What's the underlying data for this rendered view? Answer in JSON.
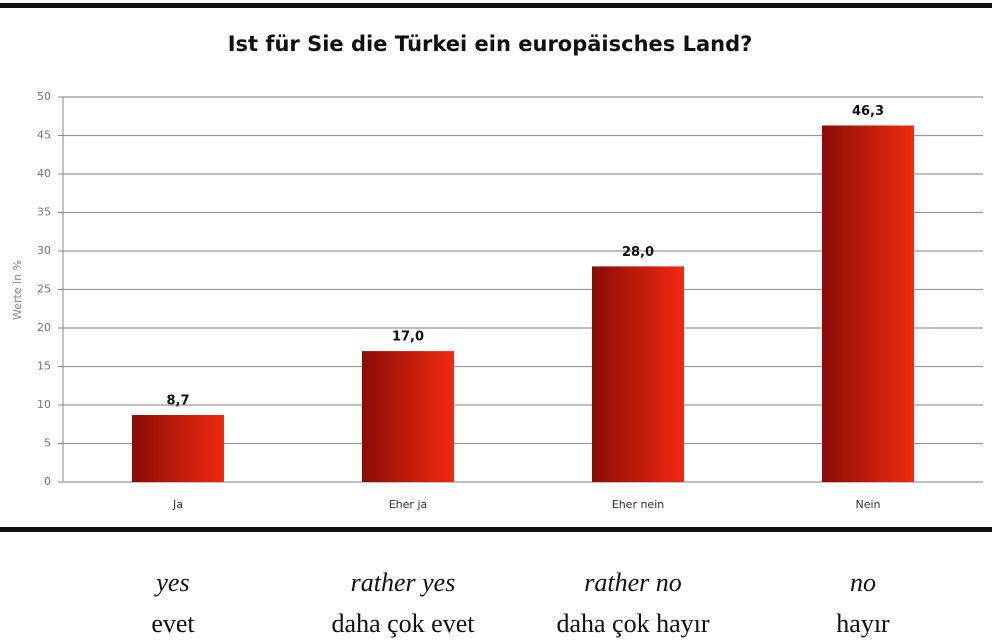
{
  "chart_data": {
    "type": "bar",
    "title": "Ist für Sie die Türkei ein europäisches Land?",
    "ylabel": "Werte in %",
    "categories": [
      "Ja",
      "Eher ja",
      "Eher nein",
      "Nein"
    ],
    "values": [
      8.7,
      17.0,
      28.0,
      46.3
    ],
    "value_labels": [
      "8,7",
      "17,0",
      "28,0",
      "46,3"
    ],
    "color": "#f02a10",
    "ylim": [
      0,
      50
    ],
    "yticks": [
      0,
      5,
      10,
      15,
      20,
      25,
      30,
      35,
      40,
      45,
      50
    ],
    "grid": true,
    "translations": {
      "english": [
        "yes",
        "rather yes",
        "rather no",
        "no"
      ],
      "turkish": [
        "evet",
        "daha çok evet",
        "daha çok hayır",
        "hayır"
      ]
    }
  }
}
